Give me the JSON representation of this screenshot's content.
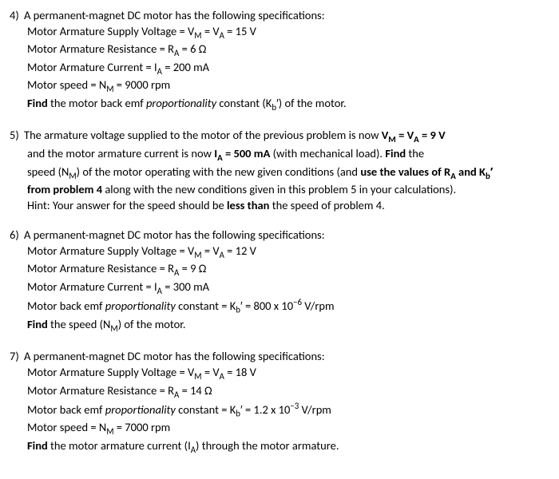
{
  "p4": {
    "num": "4)",
    "l1a": "A permanent-magnet DC motor has the following specifications:",
    "l2": "Motor Armature Supply Voltage = V",
    "l2sub1": "M",
    "l2b": " = V",
    "l2sub2": "A",
    "l2c": " = 15 V",
    "l3": "Motor Armature Resistance = R",
    "l3sub": "A",
    "l3b": " = 6 Ω",
    "l4": "Motor Armature Current = I",
    "l4sub": "A",
    "l4b": " = 200 mA",
    "l5": "Motor speed = N",
    "l5sub": "M",
    "l5b": " = 9000 rpm",
    "l6a": "Find",
    "l6b": " the motor back emf ",
    "l6c": "proportionality",
    "l6d": " constant (K",
    "l6sub": "b",
    "l6e": "′) of the motor."
  },
  "p5": {
    "num": "5)",
    "l1a": "The armature voltage supplied to the motor of the previous problem is now ",
    "l1b": "V",
    "l1sub1": "M",
    "l1c": " = V",
    "l1sub2": "A",
    "l1d": " =  9 V",
    "l2a": "and the motor armature current is now ",
    "l2b": "I",
    "l2sub": "A",
    "l2c": " = 500 mA",
    "l2d": " (with mechanical load). ",
    "l2e": "Find",
    "l2f": " the",
    "l3a": "speed (N",
    "l3sub": "M",
    "l3b": ") of the motor operating with the new given conditions (and ",
    "l3c": "use the values of R",
    "l3sub2": "A",
    "l3d": " and K",
    "l3sub3": "b",
    "l3e": "′",
    "l4a": "from problem 4",
    "l4b": " along with the new conditions given in this problem 5 in your calculations).",
    "l5a": "Hint: Your answer for the speed should be ",
    "l5b": "less than",
    "l5c": " the speed of problem 4."
  },
  "p6": {
    "num": "6)",
    "l1": "A permanent-magnet DC motor has the following specifications:",
    "l2": "Motor Armature Supply Voltage = V",
    "l2sub1": "M",
    "l2b": " = V",
    "l2sub2": "A",
    "l2c": " = 12 V",
    "l3": "Motor Armature Resistance = R",
    "l3sub": "A",
    "l3b": " = 9 Ω",
    "l4": "Motor Armature Current = I",
    "l4sub": "A",
    "l4b": " = 300 mA",
    "l5": "Motor back emf ",
    "l5i": "proportionality",
    "l5b": " constant = K",
    "l5sub": "b",
    "l5c": "′ = 800 x 10",
    "l5sup": "−6",
    "l5d": " V/rpm",
    "l6a": "Find",
    "l6b": " the speed (N",
    "l6sub": "M",
    "l6c": ") of the motor."
  },
  "p7": {
    "num": "7)",
    "l1": "A permanent-magnet DC motor has the following specifications:",
    "l2": "Motor Armature Supply Voltage = V",
    "l2sub1": "M",
    "l2b": " = V",
    "l2sub2": "A",
    "l2c": " = 18 V",
    "l3": "Motor Armature Resistance = R",
    "l3sub": "A",
    "l3b": " = 14 Ω",
    "l4": "Motor back emf ",
    "l4i": "proportionality",
    "l4b": " constant = K",
    "l4sub": "b",
    "l4c": "′ = 1.2 x 10",
    "l4sup": "−3",
    "l4d": " V/rpm",
    "l5": "Motor speed = N",
    "l5sub": "M",
    "l5b": " = 7000 rpm",
    "l6a": "Find",
    "l6b": " the motor armature current (I",
    "l6sub": "A",
    "l6c": ") through the motor armature."
  }
}
